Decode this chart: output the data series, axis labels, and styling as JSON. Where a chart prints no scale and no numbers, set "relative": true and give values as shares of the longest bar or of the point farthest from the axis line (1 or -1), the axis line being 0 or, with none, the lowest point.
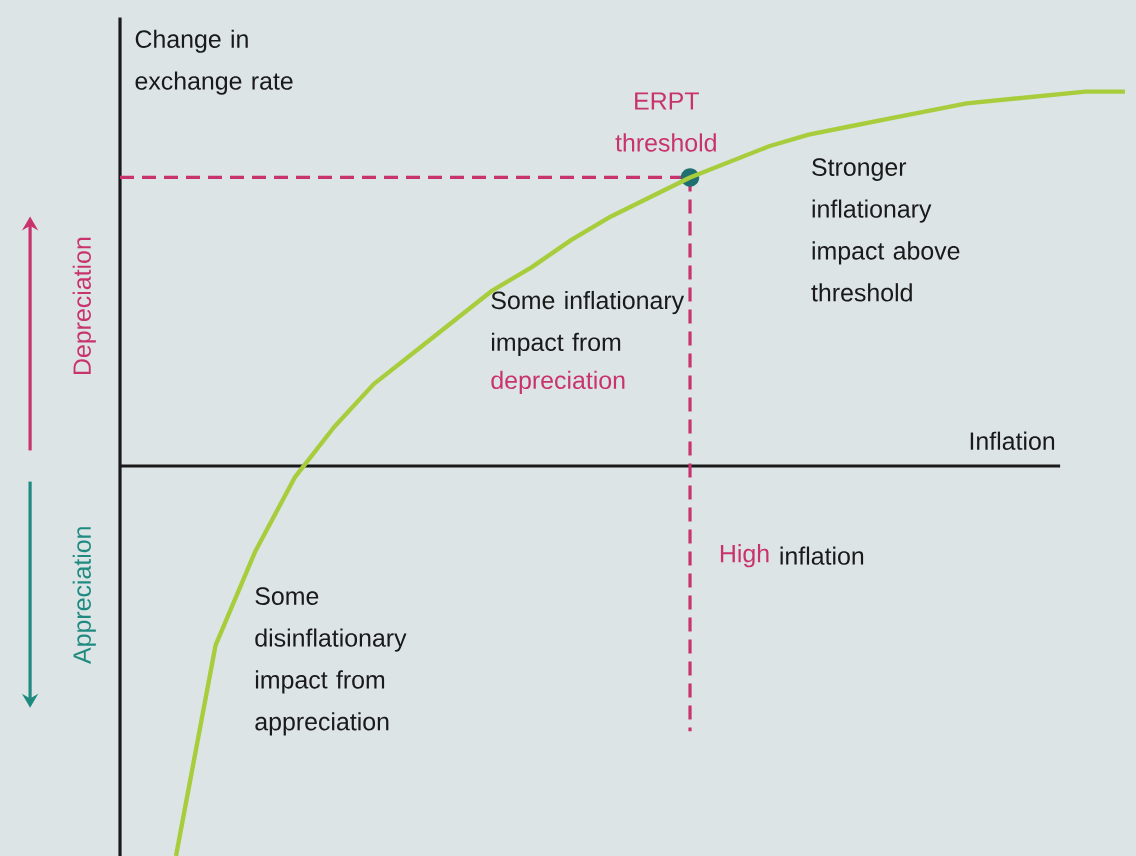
{
  "chart_data": {
    "type": "line",
    "relative": true,
    "ylabel": "Change in exchange rate",
    "xlabel": "Inflation",
    "categories": [
      null,
      null,
      null,
      null,
      null,
      null,
      null,
      null,
      null,
      null,
      null,
      null,
      null,
      null,
      null,
      null,
      null,
      null,
      null,
      null,
      null,
      null,
      null,
      null,
      null
    ],
    "series": [
      {
        "color": "#a8cd3c",
        "values": [
          -1,
          -0.46,
          -0.22,
          -0.03,
          0.1,
          0.21,
          0.29,
          0.37,
          0.45,
          0.51,
          0.58,
          0.64,
          0.69,
          0.74,
          0.78,
          0.82,
          0.85,
          0.87,
          0.89,
          0.91,
          0.93,
          0.94,
          0.95,
          0.96,
          0.96
        ]
      }
    ],
    "ref_lines": [
      {
        "axis": "y",
        "value": 0.74,
        "color": "#c8336e",
        "line_style": "dashed",
        "label": "ERPT threshold"
      }
    ],
    "annotations": [
      "Stronger inflationary impact above threshold",
      "Some inflationary impact from",
      "depreciation",
      "High",
      "inflation",
      "Some disinflationary impact from appreciation",
      "Depreciation",
      "Appreciation"
    ]
  }
}
